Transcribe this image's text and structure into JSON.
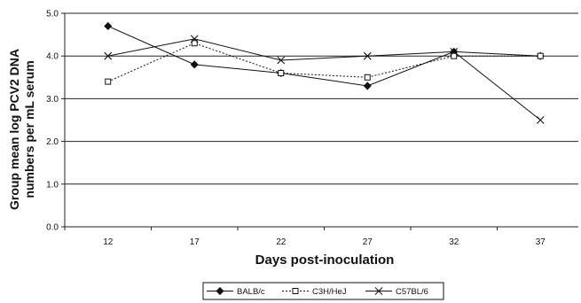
{
  "chart_data": {
    "type": "line",
    "xlabel": "Days post-inoculation",
    "ylabel": "Group mean log PCV2 DNA numbers per mL serum",
    "ylabel_lines": [
      "Group mean log PCV2 DNA",
      "numbers per mL serum"
    ],
    "categories": [
      "12",
      "17",
      "22",
      "27",
      "32",
      "37"
    ],
    "ylim": [
      0,
      5
    ],
    "yticks": [
      "0.0",
      "1.0",
      "2.0",
      "3.0",
      "4.0",
      "5.0"
    ],
    "grid": "horizontal",
    "legend_position": "bottom",
    "series": [
      {
        "name": "BALB/c",
        "marker": "diamond",
        "line": "solid",
        "values": [
          4.7,
          3.8,
          3.6,
          3.3,
          4.1,
          4.0
        ]
      },
      {
        "name": "C3H/HeJ",
        "marker": "square",
        "line": "dotted",
        "values": [
          3.4,
          4.3,
          3.6,
          3.5,
          4.0,
          4.0
        ]
      },
      {
        "name": "C57BL/6",
        "marker": "x",
        "line": "solid",
        "values": [
          4.0,
          4.4,
          3.9,
          4.0,
          4.1,
          2.5
        ]
      }
    ]
  }
}
